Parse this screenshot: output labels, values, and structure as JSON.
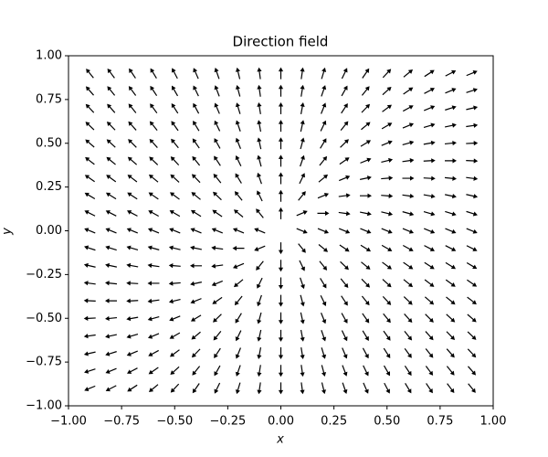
{
  "chart_data": {
    "type": "quiver",
    "title": "Direction field",
    "x_label": "x",
    "y_label": "y",
    "color": "#000000",
    "x": [
      -0.9,
      -0.8,
      -0.7,
      -0.6,
      -0.5,
      -0.4,
      -0.3,
      -0.2,
      -0.1,
      0,
      0.1,
      0.2,
      0.3,
      0.4,
      0.5,
      0.6,
      0.7,
      0.8,
      0.9
    ],
    "y": [
      0.9,
      0.8,
      0.7,
      0.6,
      0.5,
      0.4,
      0.3,
      0.2,
      0.1,
      0,
      -0.1,
      -0.2,
      -0.3,
      -0.4,
      -0.5,
      -0.6,
      -0.7,
      -0.8,
      -0.9
    ],
    "u": [
      [
        -0.9,
        -0.8,
        -0.7,
        -0.6,
        -0.5,
        -0.4,
        -0.3,
        -0.2,
        -0.1,
        0,
        0.1,
        0.2,
        0.3,
        0.4,
        0.5,
        0.6,
        0.7,
        0.8,
        0.9
      ],
      [
        -0.9,
        -0.8,
        -0.7,
        -0.6,
        -0.5,
        -0.4,
        -0.3,
        -0.2,
        -0.1,
        0,
        0.1,
        0.2,
        0.3,
        0.4,
        0.5,
        0.6,
        0.7,
        0.8,
        0.9
      ],
      [
        -0.9,
        -0.8,
        -0.7,
        -0.6,
        -0.5,
        -0.4,
        -0.3,
        -0.2,
        -0.1,
        0,
        0.1,
        0.2,
        0.3,
        0.4,
        0.5,
        0.6,
        0.7,
        0.8,
        0.9
      ],
      [
        -0.9,
        -0.8,
        -0.7,
        -0.6,
        -0.5,
        -0.4,
        -0.3,
        -0.2,
        -0.1,
        0,
        0.1,
        0.2,
        0.3,
        0.4,
        0.5,
        0.6,
        0.7,
        0.8,
        0.9
      ],
      [
        -0.9,
        -0.8,
        -0.7,
        -0.6,
        -0.5,
        -0.4,
        -0.3,
        -0.2,
        -0.1,
        0,
        0.1,
        0.2,
        0.3,
        0.4,
        0.5,
        0.6,
        0.7,
        0.8,
        0.9
      ],
      [
        -0.9,
        -0.8,
        -0.7,
        -0.6,
        -0.5,
        -0.4,
        -0.3,
        -0.2,
        -0.1,
        0,
        0.1,
        0.2,
        0.3,
        0.4,
        0.5,
        0.6,
        0.7,
        0.8,
        0.9
      ],
      [
        -0.9,
        -0.8,
        -0.7,
        -0.6,
        -0.5,
        -0.4,
        -0.3,
        -0.2,
        -0.1,
        0,
        0.1,
        0.2,
        0.3,
        0.4,
        0.5,
        0.6,
        0.7,
        0.8,
        0.9
      ],
      [
        -0.9,
        -0.8,
        -0.7,
        -0.6,
        -0.5,
        -0.4,
        -0.3,
        -0.2,
        -0.1,
        0,
        0.1,
        0.2,
        0.3,
        0.4,
        0.5,
        0.6,
        0.7,
        0.8,
        0.9
      ],
      [
        -0.9,
        -0.8,
        -0.7,
        -0.6,
        -0.5,
        -0.4,
        -0.3,
        -0.2,
        -0.1,
        0,
        0.1,
        0.2,
        0.3,
        0.4,
        0.5,
        0.6,
        0.7,
        0.8,
        0.9
      ],
      [
        -0.9,
        -0.8,
        -0.7,
        -0.6,
        -0.5,
        -0.4,
        -0.3,
        -0.2,
        -0.1,
        0,
        0.1,
        0.2,
        0.3,
        0.4,
        0.5,
        0.6,
        0.7,
        0.8,
        0.9
      ],
      [
        -0.9,
        -0.8,
        -0.7,
        -0.6,
        -0.5,
        -0.4,
        -0.3,
        -0.2,
        -0.1,
        0,
        0.1,
        0.2,
        0.3,
        0.4,
        0.5,
        0.6,
        0.7,
        0.8,
        0.9
      ],
      [
        -0.9,
        -0.8,
        -0.7,
        -0.6,
        -0.5,
        -0.4,
        -0.3,
        -0.2,
        -0.1,
        0,
        0.1,
        0.2,
        0.3,
        0.4,
        0.5,
        0.6,
        0.7,
        0.8,
        0.9
      ],
      [
        -0.9,
        -0.8,
        -0.7,
        -0.6,
        -0.5,
        -0.4,
        -0.3,
        -0.2,
        -0.1,
        0,
        0.1,
        0.2,
        0.3,
        0.4,
        0.5,
        0.6,
        0.7,
        0.8,
        0.9
      ],
      [
        -0.9,
        -0.8,
        -0.7,
        -0.6,
        -0.5,
        -0.4,
        -0.3,
        -0.2,
        -0.1,
        0,
        0.1,
        0.2,
        0.3,
        0.4,
        0.5,
        0.6,
        0.7,
        0.8,
        0.9
      ],
      [
        -0.9,
        -0.8,
        -0.7,
        -0.6,
        -0.5,
        -0.4,
        -0.3,
        -0.2,
        -0.1,
        0,
        0.1,
        0.2,
        0.3,
        0.4,
        0.5,
        0.6,
        0.7,
        0.8,
        0.9
      ],
      [
        -0.9,
        -0.8,
        -0.7,
        -0.6,
        -0.5,
        -0.4,
        -0.3,
        -0.2,
        -0.1,
        0,
        0.1,
        0.2,
        0.3,
        0.4,
        0.5,
        0.6,
        0.7,
        0.8,
        0.9
      ],
      [
        -0.9,
        -0.8,
        -0.7,
        -0.6,
        -0.5,
        -0.4,
        -0.3,
        -0.2,
        -0.1,
        0,
        0.1,
        0.2,
        0.3,
        0.4,
        0.5,
        0.6,
        0.7,
        0.8,
        0.9
      ],
      [
        -0.9,
        -0.8,
        -0.7,
        -0.6,
        -0.5,
        -0.4,
        -0.3,
        -0.2,
        -0.1,
        0,
        0.1,
        0.2,
        0.3,
        0.4,
        0.5,
        0.6,
        0.7,
        0.8,
        0.9
      ],
      [
        -0.9,
        -0.8,
        -0.7,
        -0.6,
        -0.5,
        -0.4,
        -0.3,
        -0.2,
        -0.1,
        0,
        0.1,
        0.2,
        0.3,
        0.4,
        0.5,
        0.6,
        0.7,
        0.8,
        0.9
      ]
    ],
    "v": [
      [
        1.35,
        1.3,
        1.25,
        1.2,
        1.15,
        1.1,
        1.05,
        1,
        0.95,
        0.9,
        0.85,
        0.8,
        0.75,
        0.7,
        0.65,
        0.6,
        0.55,
        0.5,
        0.45
      ],
      [
        1.25,
        1.2,
        1.15,
        1.1,
        1.05,
        1,
        0.95,
        0.9,
        0.85,
        0.8,
        0.75,
        0.7,
        0.65,
        0.6,
        0.55,
        0.5,
        0.45,
        0.4,
        0.35
      ],
      [
        1.15,
        1.1,
        1.05,
        1,
        0.95,
        0.9,
        0.85,
        0.8,
        0.75,
        0.7,
        0.65,
        0.6,
        0.55,
        0.5,
        0.45,
        0.4,
        0.35,
        0.3,
        0.25
      ],
      [
        1.05,
        1,
        0.95,
        0.9,
        0.85,
        0.8,
        0.75,
        0.7,
        0.65,
        0.6,
        0.55,
        0.5,
        0.45,
        0.4,
        0.35,
        0.3,
        0.25,
        0.2,
        0.15
      ],
      [
        0.95,
        0.9,
        0.85,
        0.8,
        0.75,
        0.7,
        0.65,
        0.6,
        0.55,
        0.5,
        0.45,
        0.4,
        0.35,
        0.3,
        0.25,
        0.2,
        0.15,
        0.1,
        0.05
      ],
      [
        0.85,
        0.8,
        0.75,
        0.7,
        0.65,
        0.6,
        0.55,
        0.5,
        0.45,
        0.4,
        0.35,
        0.3,
        0.25,
        0.2,
        0.15,
        0.1,
        0.05,
        0,
        -0.05
      ],
      [
        0.75,
        0.7,
        0.65,
        0.6,
        0.55,
        0.5,
        0.45,
        0.4,
        0.35,
        0.3,
        0.25,
        0.2,
        0.15,
        0.1,
        0.05,
        0,
        -0.05,
        -0.1,
        -0.15
      ],
      [
        0.65,
        0.6,
        0.55,
        0.5,
        0.45,
        0.4,
        0.35,
        0.3,
        0.25,
        0.2,
        0.15,
        0.1,
        0.05,
        0,
        -0.05,
        -0.1,
        -0.15,
        -0.2,
        -0.25
      ],
      [
        0.55,
        0.5,
        0.45,
        0.4,
        0.35,
        0.3,
        0.25,
        0.2,
        0.15,
        0.1,
        0.05,
        0,
        -0.05,
        -0.1,
        -0.15,
        -0.2,
        -0.25,
        -0.3,
        -0.35
      ],
      [
        0.45,
        0.4,
        0.35,
        0.3,
        0.25,
        0.2,
        0.15,
        0.1,
        0.05,
        0,
        -0.05,
        -0.1,
        -0.15,
        -0.2,
        -0.25,
        -0.3,
        -0.35,
        -0.4,
        -0.45
      ],
      [
        0.35,
        0.3,
        0.25,
        0.2,
        0.15,
        0.1,
        0.05,
        0,
        -0.05,
        -0.1,
        -0.15,
        -0.2,
        -0.25,
        -0.3,
        -0.35,
        -0.4,
        -0.45,
        -0.5,
        -0.55
      ],
      [
        0.25,
        0.2,
        0.15,
        0.1,
        0.05,
        0,
        -0.05,
        -0.1,
        -0.15,
        -0.2,
        -0.25,
        -0.3,
        -0.35,
        -0.4,
        -0.45,
        -0.5,
        -0.55,
        -0.6,
        -0.65
      ],
      [
        0.15,
        0.1,
        0.05,
        0,
        -0.05,
        -0.1,
        -0.15,
        -0.2,
        -0.25,
        -0.3,
        -0.35,
        -0.4,
        -0.45,
        -0.5,
        -0.55,
        -0.6,
        -0.65,
        -0.7,
        -0.75
      ],
      [
        0.05,
        0,
        -0.05,
        -0.1,
        -0.15,
        -0.2,
        -0.25,
        -0.3,
        -0.35,
        -0.4,
        -0.45,
        -0.5,
        -0.55,
        -0.6,
        -0.65,
        -0.7,
        -0.75,
        -0.8,
        -0.85
      ],
      [
        -0.05,
        -0.1,
        -0.15,
        -0.2,
        -0.25,
        -0.3,
        -0.35,
        -0.4,
        -0.45,
        -0.5,
        -0.55,
        -0.6,
        -0.65,
        -0.7,
        -0.75,
        -0.8,
        -0.85,
        -0.9,
        -0.95
      ],
      [
        -0.15,
        -0.2,
        -0.25,
        -0.3,
        -0.35,
        -0.4,
        -0.45,
        -0.5,
        -0.55,
        -0.6,
        -0.65,
        -0.7,
        -0.75,
        -0.8,
        -0.85,
        -0.9,
        -0.95,
        -1,
        -1.05
      ],
      [
        -0.25,
        -0.3,
        -0.35,
        -0.4,
        -0.45,
        -0.5,
        -0.55,
        -0.6,
        -0.65,
        -0.7,
        -0.75,
        -0.8,
        -0.85,
        -0.9,
        -0.95,
        -1,
        -1.05,
        -1.1,
        -1.15
      ],
      [
        -0.35,
        -0.4,
        -0.45,
        -0.5,
        -0.55,
        -0.6,
        -0.65,
        -0.7,
        -0.75,
        -0.8,
        -0.85,
        -0.9,
        -0.95,
        -1,
        -1.05,
        -1.1,
        -1.15,
        -1.2,
        -1.25
      ],
      [
        -0.45,
        -0.5,
        -0.55,
        -0.6,
        -0.65,
        -0.7,
        -0.75,
        -0.8,
        -0.85,
        -0.9,
        -0.95,
        -1,
        -1.05,
        -1.1,
        -1.15,
        -1.2,
        -1.25,
        -1.3,
        -1.35
      ]
    ],
    "xlim": [
      -1,
      1
    ],
    "ylim": [
      -1,
      1
    ],
    "xticks": [
      {
        "value": -1,
        "label": "−1.00"
      },
      {
        "value": -0.75,
        "label": "−0.75"
      },
      {
        "value": -0.5,
        "label": "−0.50"
      },
      {
        "value": -0.25,
        "label": "−0.25"
      },
      {
        "value": 0,
        "label": "0.00"
      },
      {
        "value": 0.25,
        "label": "0.25"
      },
      {
        "value": 0.5,
        "label": "0.50"
      },
      {
        "value": 0.75,
        "label": "0.75"
      },
      {
        "value": 1,
        "label": "1.00"
      }
    ],
    "yticks": [
      {
        "value": -1,
        "label": "−1.00"
      },
      {
        "value": -0.75,
        "label": "−0.75"
      },
      {
        "value": -0.5,
        "label": "−0.50"
      },
      {
        "value": -0.25,
        "label": "−0.25"
      },
      {
        "value": 0,
        "label": "0.00"
      },
      {
        "value": 0.25,
        "label": "0.25"
      },
      {
        "value": 0.5,
        "label": "0.50"
      },
      {
        "value": 0.75,
        "label": "0.75"
      },
      {
        "value": 1,
        "label": "1.00"
      }
    ],
    "grid": false
  }
}
